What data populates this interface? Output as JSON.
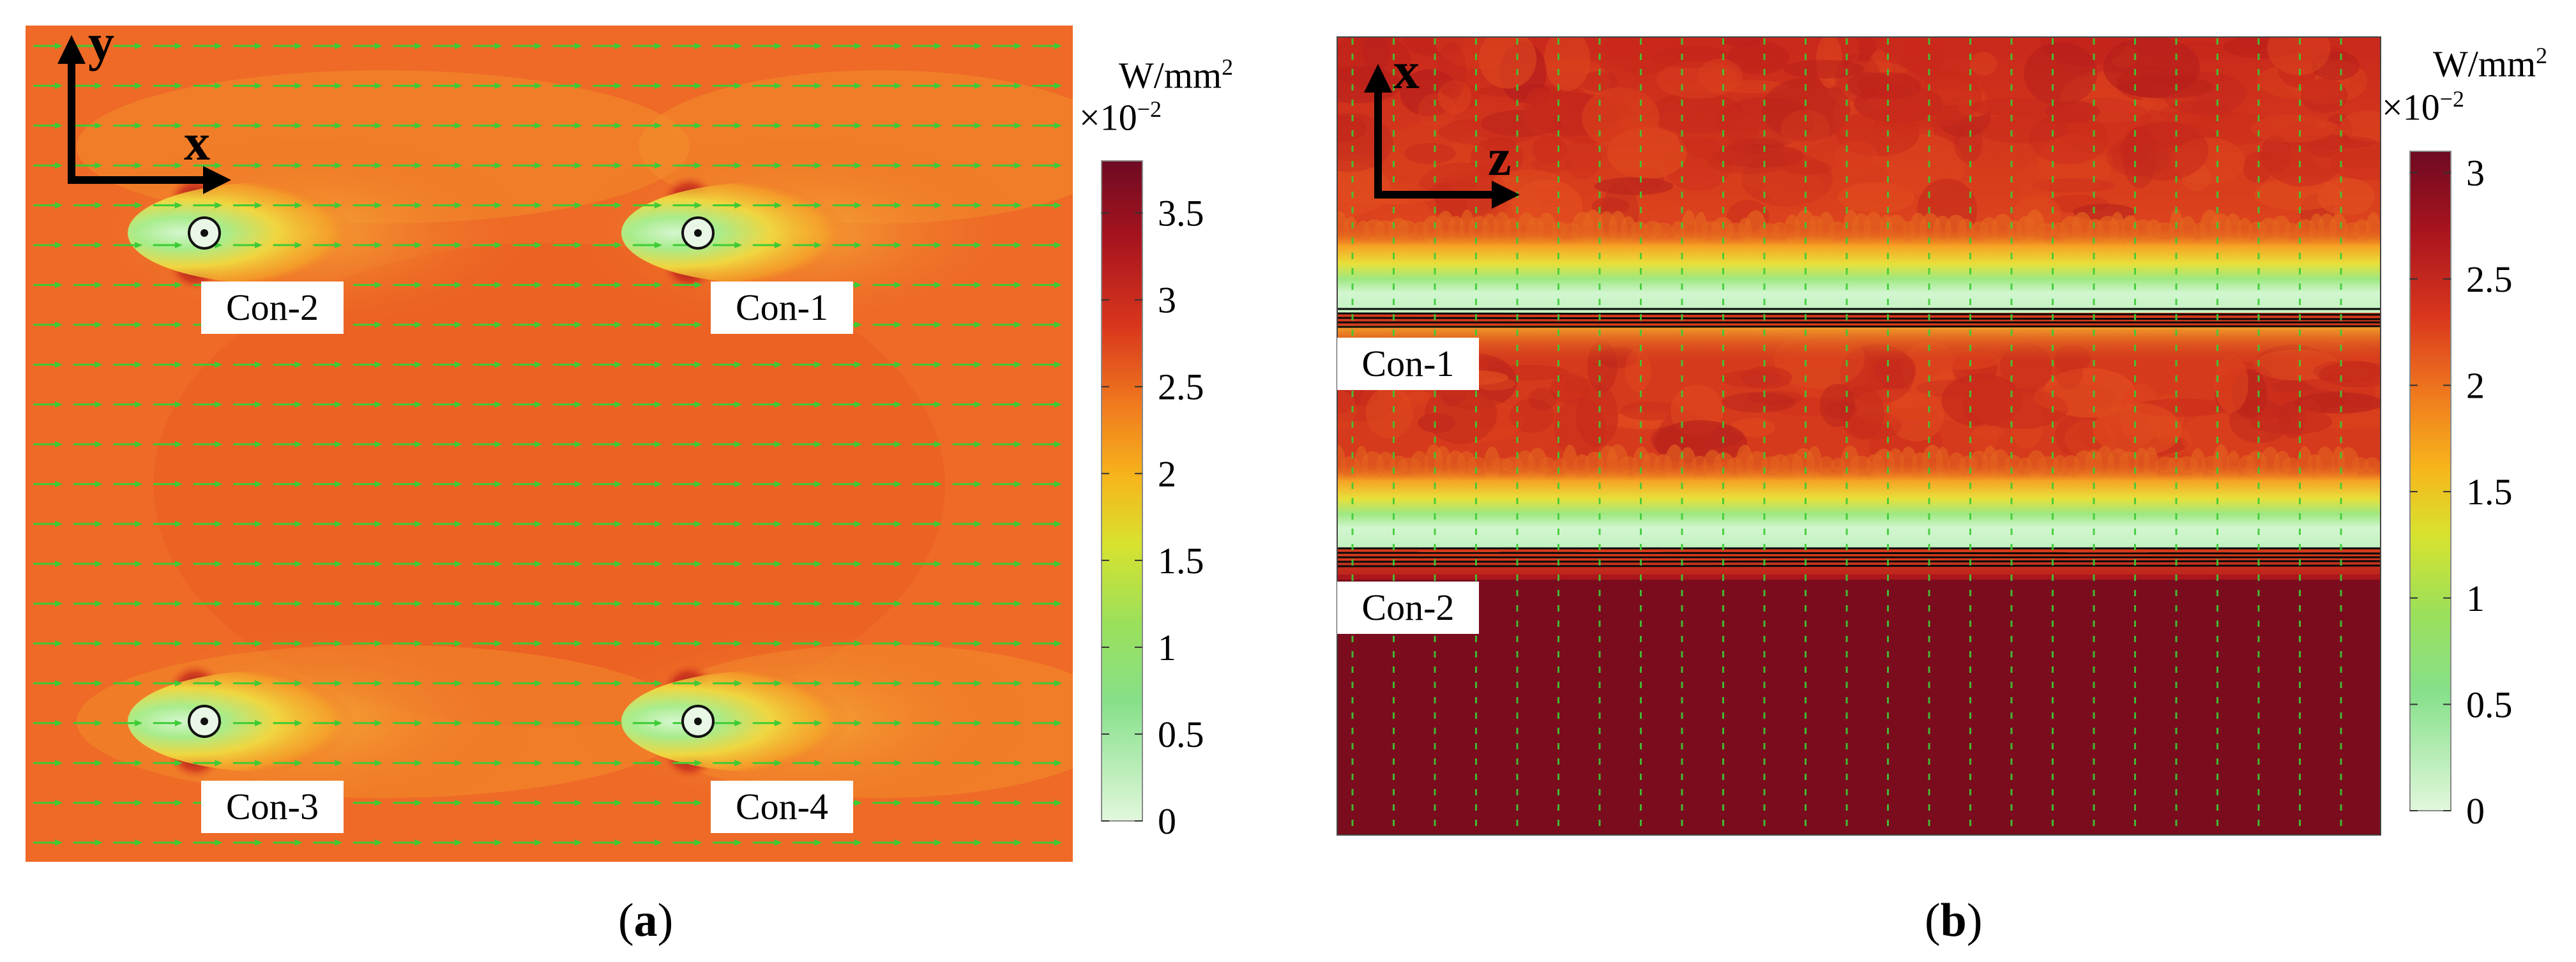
{
  "figure": {
    "panels": [
      {
        "id": "a",
        "caption_letter": "a",
        "axes": {
          "horizontal": "x",
          "vertical": "y"
        },
        "conductor_labels": [
          "Con-2",
          "Con-1",
          "Con-3",
          "Con-4"
        ],
        "colorbar": {
          "unit": "W/mm",
          "unit_superscript": "2",
          "multiplier_base": "×10",
          "multiplier_exp": "−2",
          "min": 0,
          "max": 3.8,
          "ticks": [
            "0",
            "0.5",
            "1",
            "1.5",
            "2",
            "2.5",
            "3",
            "3.5"
          ]
        },
        "arrow_field": {
          "direction": "+x",
          "color": "#33cc33"
        }
      },
      {
        "id": "b",
        "caption_letter": "b",
        "axes": {
          "horizontal": "z",
          "vertical": "x"
        },
        "conductor_labels": [
          "Con-1",
          "Con-2"
        ],
        "colorbar": {
          "unit": "W/mm",
          "unit_superscript": "2",
          "multiplier_base": "×10",
          "multiplier_exp": "−2",
          "min": 0,
          "max": 3.1,
          "ticks": [
            "0",
            "0.5",
            "1",
            "1.5",
            "2",
            "2.5",
            "3"
          ]
        },
        "arrow_field": {
          "direction": "vertical",
          "color": "#33cc33"
        }
      }
    ],
    "colors": {
      "field_bg_a": "#ee6a26",
      "field_bg_b": "#d63a1c",
      "field_dark": "#7a0c1e",
      "field_low": "#d8f5d2",
      "arrow": "#3ccc35"
    }
  }
}
